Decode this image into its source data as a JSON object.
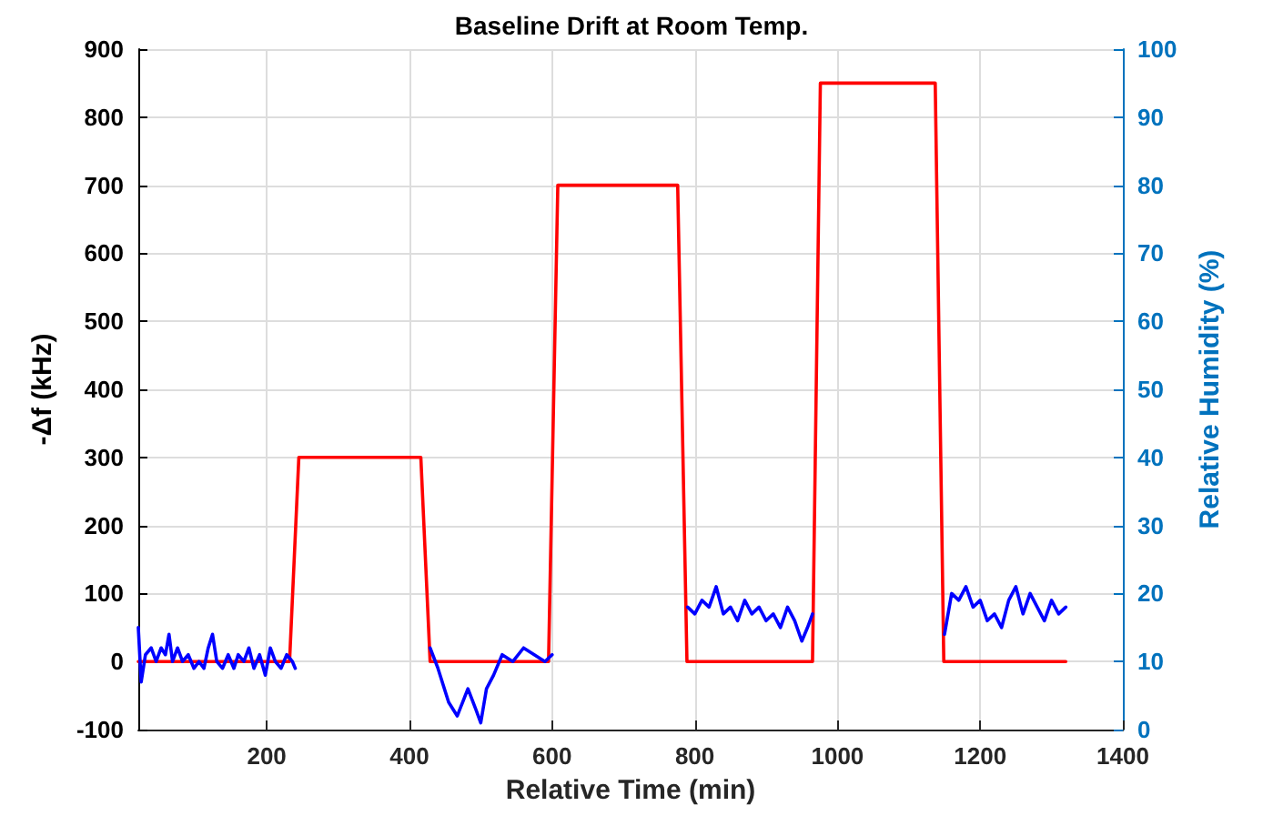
{
  "chart_data": {
    "type": "line",
    "title": "Baseline Drift at Room Temp.",
    "xlabel": "Relative Time (min)",
    "ylabel": "-Δf (kHz)",
    "y2label": "Relative Humidity (%)",
    "xlim": [
      20,
      1400
    ],
    "xticks": [
      200,
      400,
      600,
      800,
      1000,
      1200,
      1400
    ],
    "ylim": [
      -100,
      900
    ],
    "yticks": [
      -100,
      0,
      100,
      200,
      300,
      400,
      500,
      600,
      700,
      800,
      900
    ],
    "y2lim": [
      0,
      100
    ],
    "y2ticks": [
      0,
      10,
      20,
      30,
      40,
      50,
      60,
      70,
      80,
      90,
      100
    ],
    "grid": true,
    "marker": "none",
    "line_style": "solid",
    "series": [
      {
        "color": "#ff0000",
        "x": [
          20,
          232,
          245,
          416,
          429,
          595,
          608,
          776,
          789,
          965,
          976,
          1137,
          1149,
          1320
        ],
        "values": [
          0,
          0,
          300,
          300,
          0,
          0,
          700,
          700,
          0,
          0,
          850,
          850,
          0,
          0
        ]
      },
      {
        "color": "#0000ff",
        "axis": "y2",
        "x": [
          20,
          24,
          30,
          38,
          45,
          52,
          58,
          63,
          68,
          75,
          82,
          90,
          98,
          105,
          112,
          118,
          124,
          130,
          138,
          146,
          154,
          160,
          168,
          175,
          182,
          190,
          198,
          205,
          212,
          220,
          228,
          236,
          240,
          335,
          429,
          440,
          455,
          467,
          482,
          493,
          500,
          508,
          518,
          530,
          545,
          560,
          575,
          590,
          600,
          700,
          790,
          800,
          810,
          820,
          830,
          840,
          850,
          860,
          870,
          880,
          890,
          900,
          910,
          920,
          930,
          940,
          950,
          958,
          965,
          1050,
          1150,
          1160,
          1170,
          1180,
          1190,
          1200,
          1210,
          1220,
          1230,
          1240,
          1250,
          1260,
          1270,
          1280,
          1290,
          1300,
          1310,
          1320
        ],
        "values": [
          15,
          7,
          11,
          12,
          10,
          12,
          11,
          14,
          10,
          12,
          10,
          11,
          9,
          10,
          9,
          12,
          14,
          10,
          9,
          11,
          9,
          11,
          10,
          12,
          9,
          11,
          8,
          12,
          10,
          9,
          11,
          10,
          9,
          null,
          12,
          9,
          4,
          2,
          6,
          3,
          1,
          6,
          8,
          11,
          10,
          12,
          11,
          10,
          11,
          null,
          18,
          17,
          19,
          18,
          21,
          17,
          18,
          16,
          19,
          17,
          18,
          16,
          17,
          15,
          18,
          16,
          13,
          15,
          17,
          null,
          14,
          20,
          19,
          21,
          18,
          19,
          16,
          17,
          15,
          19,
          21,
          17,
          20,
          18,
          16,
          19,
          17,
          18
        ]
      }
    ]
  }
}
